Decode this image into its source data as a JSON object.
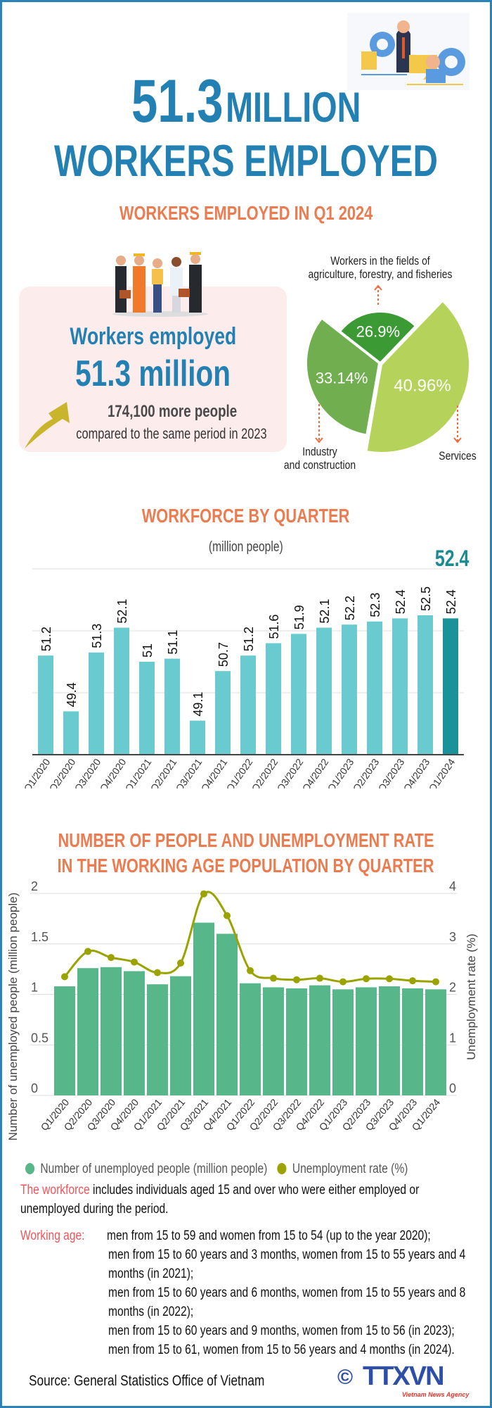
{
  "header": {
    "big_number": "51.3",
    "big_unit": "MILLION",
    "title_line2": "WORKERS EMPLOYED",
    "subtitle": "WORKERS EMPLOYED IN Q1 2024"
  },
  "summary": {
    "label": "Workers employed",
    "value": "51.3 million",
    "increase": "174,100 more people",
    "comparison": "compared to the same period in 2023"
  },
  "pie": {
    "chart_data": {
      "type": "pie",
      "slices": [
        {
          "label": "Workers in the fields of agriculture, forestry, and fisheries",
          "value": 26.9,
          "text": "26.9%",
          "color": "#3c9a35"
        },
        {
          "label": "Services",
          "value": 40.96,
          "text": "40.96%",
          "color": "#b5d25a"
        },
        {
          "label": "Industry and construction",
          "value": 33.14,
          "text": "33.14%",
          "color": "#70ae4f"
        }
      ]
    },
    "label_agri_1": "Workers in the fields of",
    "label_agri_2": "agriculture, forestry, and fisheries",
    "label_industry_1": "Industry",
    "label_industry_2": "and construction",
    "label_services": "Services"
  },
  "chart_data": [
    {
      "type": "bar",
      "title": "WORKFORCE BY QUARTER",
      "ylabel": "(million people)",
      "highlight_label": "52.4",
      "categories": [
        "Q1/2020",
        "Q2/2020",
        "Q3/2020",
        "Q4/2020",
        "Q1/2021",
        "Q2/2021",
        "Q3/2021",
        "Q4/2021",
        "Q1/2022",
        "Q2/2022",
        "Q3/2022",
        "Q4/2022",
        "Q1/2023",
        "Q2/2023",
        "Q3/2023",
        "Q4/2023",
        "Q1/2024"
      ],
      "values": [
        51.2,
        49.4,
        51.3,
        52.1,
        51,
        51.1,
        49.1,
        50.7,
        51.2,
        51.6,
        51.9,
        52.1,
        52.2,
        52.3,
        52.4,
        52.5,
        52.4
      ],
      "ylim": [
        48,
        54
      ],
      "gridlines": [
        50,
        52,
        54
      ],
      "colors": {
        "bar": "#69cbd0",
        "highlight": "#1b9199"
      }
    },
    {
      "type": "bar+line",
      "title_line1": "NUMBER OF PEOPLE AND UNEMPLOYMENT RATE",
      "title_line2": "IN THE WORKING AGE POPULATION BY QUARTER",
      "ylabel_left": "Number of unemployed people (million people)",
      "ylabel_right": "Unemployment rate (%)",
      "categories": [
        "Q1/2020",
        "Q2/2020",
        "Q3/2020",
        "Q4/2020",
        "Q1/2021",
        "Q2/2021",
        "Q3/2021",
        "Q4/2021",
        "Q1/2022",
        "Q2/2022",
        "Q3/2022",
        "Q4/2022",
        "Q1/2023",
        "Q2/2023",
        "Q3/2023",
        "Q4/2023",
        "Q1/2024"
      ],
      "series": [
        {
          "name": "Number of unemployed people (million people)",
          "type": "bar",
          "axis": "left",
          "color": "#57b78a",
          "values": [
            1.08,
            1.26,
            1.27,
            1.23,
            1.1,
            1.18,
            1.71,
            1.6,
            1.11,
            1.07,
            1.06,
            1.09,
            1.05,
            1.07,
            1.08,
            1.06,
            1.05
          ]
        },
        {
          "name": "Unemployment rate (%)",
          "type": "line",
          "axis": "right",
          "color": "#9aa300",
          "values": [
            2.35,
            2.85,
            2.73,
            2.64,
            2.43,
            2.62,
            3.99,
            3.56,
            2.47,
            2.32,
            2.29,
            2.32,
            2.25,
            2.31,
            2.31,
            2.27,
            2.25
          ]
        }
      ],
      "ylim_left": [
        0,
        2
      ],
      "yticks_left": [
        "0",
        "0.5",
        "1",
        "1.5",
        "2"
      ],
      "ylim_right": [
        0,
        4
      ],
      "yticks_right": [
        "0",
        "1",
        "2",
        "3",
        "4"
      ],
      "legend": "bottom"
    }
  ],
  "notes": {
    "workforce_term": "The workforce",
    "workforce_line1": " includes individuals aged 15 and over who   were either employed or",
    "workforce_line2": "unemployed during the period.",
    "working_age_label": "Working age:",
    "working_age_lines": [
      "men from 15 to 59 and women from 15 to 54 (up to the year 2020);",
      "men from 15 to 60 years and 3 months, women from 15 to 55 years and 4",
      "months (in 2021);",
      "men from 15 to 60 years and 6 months, women from 15 to 55 years and 8",
      "months (in 2022);",
      "men from 15 to 60 years and 9 months, women from 15 to 56 (in 2023);",
      "men from 15 to 61, women from 15 to 56 years and 4 months (in 2024)."
    ]
  },
  "footer": {
    "source": "Source: General Statistics Office of Vietnam",
    "logo_text": "TTXVN",
    "logo_sub": "Vietnam News Agency",
    "copyright": "©"
  }
}
